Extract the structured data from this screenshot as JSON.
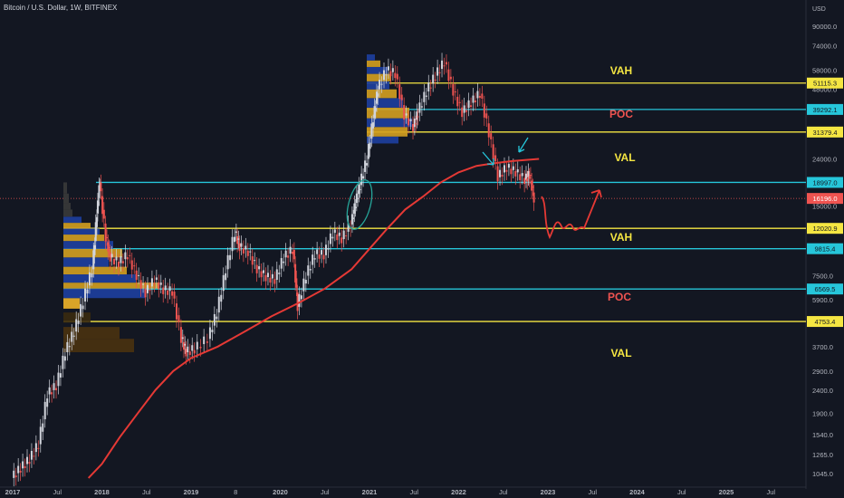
{
  "header": {
    "title": "Bitcoin / U.S. Dollar, 1W, BITFINEX"
  },
  "chart_data": {
    "type": "candlestick",
    "title": "Bitcoin / U.S. Dollar, 1W, BITFINEX",
    "y_unit_label": "USD",
    "y_scale": "log",
    "ylim": [
      1000,
      100000
    ],
    "y_ticks": [
      "90000.0",
      "74000.0",
      "58000.0",
      "48000.0",
      "24000.0",
      "15000.0",
      "7500.0",
      "5900.0",
      "3700.0",
      "2900.0",
      "2400.0",
      "1900.0",
      "1540.0",
      "1265.0",
      "1045.0"
    ],
    "x_ticks": [
      "2017",
      "Jul",
      "2018",
      "Jul",
      "2019",
      "8",
      "2020",
      "Jul",
      "2021",
      "Jul",
      "2022",
      "Jul",
      "2023",
      "Jul",
      "2024",
      "Jul",
      "2025",
      "Jul"
    ],
    "horizontal_levels": [
      {
        "value": 51115.3,
        "label": "51115.3",
        "color": "#f5e642"
      },
      {
        "value": 39292.1,
        "label": "39292.1",
        "color": "#26c6da"
      },
      {
        "value": 31379.4,
        "label": "31379.4",
        "color": "#f5e642"
      },
      {
        "value": 18997.0,
        "label": "18997.0",
        "color": "#26c6da"
      },
      {
        "value": 12020.9,
        "label": "12020.9",
        "color": "#f5e642"
      },
      {
        "value": 9815.4,
        "label": "9815.4",
        "color": "#26c6da"
      },
      {
        "value": 6569.5,
        "label": "6569.5",
        "color": "#26c6da"
      },
      {
        "value": 4753.4,
        "label": "4753.4",
        "color": "#f5e642"
      }
    ],
    "current_price": {
      "value": 16196.0,
      "label": "16196.0",
      "color": "#ef5350"
    },
    "annotations": [
      {
        "text": "VAH",
        "color": "#f5e642"
      },
      {
        "text": "POC",
        "color": "#ef5350"
      },
      {
        "text": "VAL",
        "color": "#f5e642"
      },
      {
        "text": "VAH",
        "color": "#f5e642"
      },
      {
        "text": "POC",
        "color": "#ef5350"
      },
      {
        "text": "VAL",
        "color": "#f5e642"
      }
    ],
    "moving_average_color": "#e53935",
    "candle_up_color": "#d1d4dc",
    "candle_down_color": "#ef5350"
  }
}
